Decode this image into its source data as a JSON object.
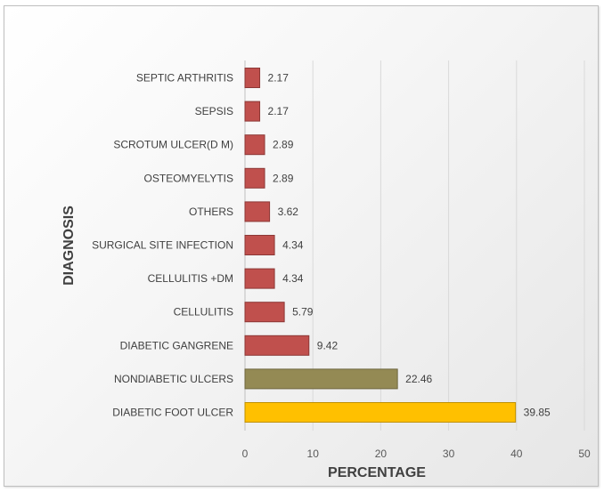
{
  "chart_data": {
    "type": "bar",
    "orientation": "horizontal",
    "title": "",
    "xlabel": "PERCENTAGE",
    "ylabel": "DIAGNOSIS",
    "xlim": [
      0,
      50
    ],
    "x_ticks": [
      0,
      10,
      20,
      30,
      40,
      50
    ],
    "grid": "vertical",
    "categories": [
      "DIABETIC FOOT ULCER",
      "NONDIABETIC ULCERS",
      "DIABETIC GANGRENE",
      "CELLULITIS",
      "CELLULITIS +DM",
      "SURGICAL SITE INFECTION",
      "OTHERS",
      "OSTEOMYELYTIS",
      "SCROTUM ULCER(D M)",
      "SEPSIS",
      "SEPTIC ARTHRITIS"
    ],
    "values": [
      39.85,
      22.46,
      9.42,
      5.79,
      4.34,
      4.34,
      3.62,
      2.89,
      2.89,
      2.17,
      2.17
    ],
    "value_labels": [
      "39.85",
      "22.46",
      "9.42",
      "5.79",
      "4.34",
      "4.34",
      "3.62",
      "2.89",
      "2.89",
      "2.17",
      "2.17"
    ],
    "bar_colors": [
      "#ffc000",
      "#948a54",
      "#c0504d",
      "#c0504d",
      "#c0504d",
      "#c0504d",
      "#c0504d",
      "#c0504d",
      "#c0504d",
      "#c0504d",
      "#c0504d"
    ],
    "bar_border_colors": [
      "#bf9000",
      "#6e6740",
      "#8c3836",
      "#8c3836",
      "#8c3836",
      "#8c3836",
      "#8c3836",
      "#8c3836",
      "#8c3836",
      "#8c3836",
      "#8c3836"
    ],
    "legend": "none"
  }
}
